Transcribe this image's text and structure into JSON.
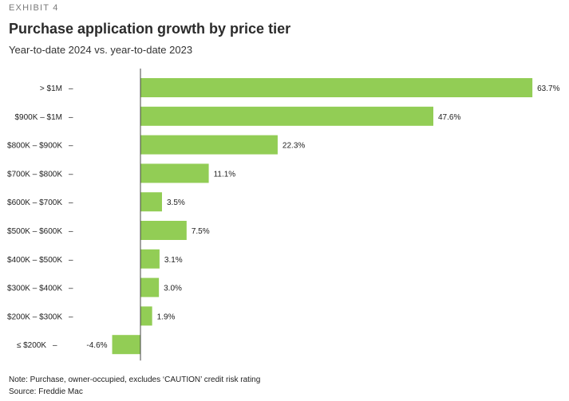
{
  "header": {
    "exhibit": "EXHIBIT 4",
    "title": "Purchase application growth by price tier",
    "subtitle": "Year-to-date 2024 vs. year-to-date 2023"
  },
  "footer": {
    "note": "Note: Purchase, owner-occupied, excludes ‘CAUTION’ credit risk rating",
    "source": "Source: Freddie Mac"
  },
  "colors": {
    "bar": "#92cd55",
    "axis": "#444444",
    "text": "#222222"
  },
  "chart_data": {
    "type": "bar",
    "orientation": "horizontal",
    "title": "Purchase application growth by price tier",
    "subtitle": "Year-to-date 2024 vs. year-to-date 2023",
    "categories": [
      "> $1M",
      "$900K – $1M",
      "$800K – $900K",
      "$700K – $800K",
      "$600K – $700K",
      "$500K – $600K",
      "$400K – $500K",
      "$300K – $400K",
      "$200K – $300K",
      "≤ $200K"
    ],
    "values": [
      63.7,
      47.6,
      22.3,
      11.1,
      3.5,
      7.5,
      3.1,
      3.0,
      1.9,
      -4.6
    ],
    "labels": [
      "63.7%",
      "47.6%",
      "22.3%",
      "11.1%",
      "3.5%",
      "7.5%",
      "3.1%",
      "3.0%",
      "1.9%",
      "-4.6%"
    ],
    "xlim": [
      -4.6,
      63.7
    ],
    "grid": false,
    "legend": "none"
  }
}
